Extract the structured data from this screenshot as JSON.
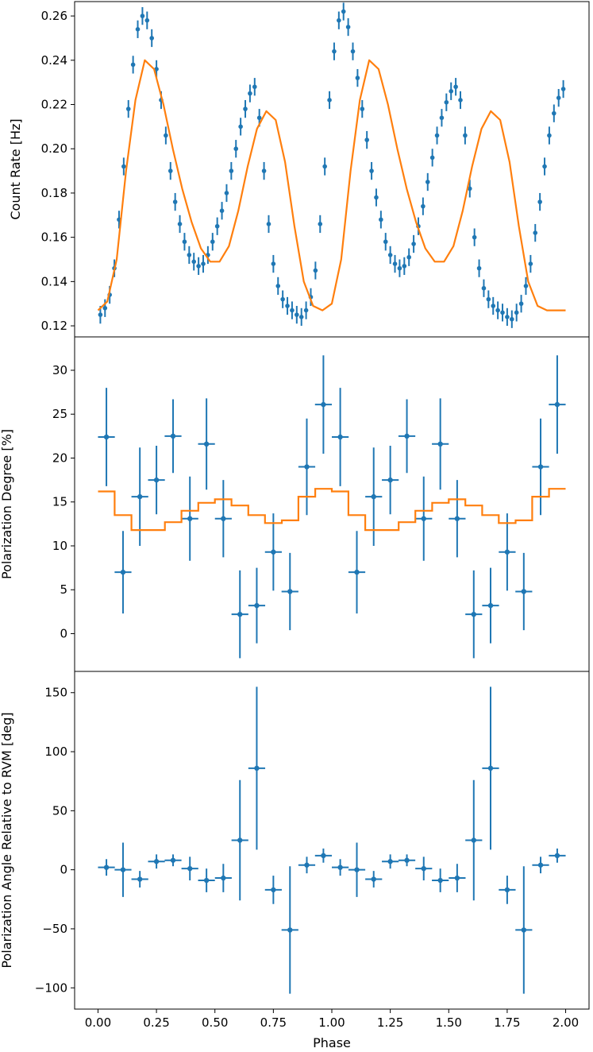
{
  "figure": {
    "xlabel": "Phase",
    "x_ticks": [
      "0.00",
      "0.25",
      "0.50",
      "0.75",
      "1.00",
      "1.25",
      "1.50",
      "1.75",
      "2.00"
    ],
    "colors": {
      "data": "#1f77b4",
      "model": "#ff7f0e",
      "axes": "#000000"
    }
  },
  "chart_data": [
    {
      "type": "scatter",
      "ylabel": "Count Rate [Hz]",
      "xlim": [
        -0.1,
        2.1
      ],
      "ylim": [
        0.115,
        0.2665
      ],
      "y_ticks": [
        "0.12",
        "0.14",
        "0.16",
        "0.18",
        "0.20",
        "0.22",
        "0.24",
        "0.26"
      ],
      "series": [
        {
          "kind": "points",
          "x": [
            0.01,
            0.03,
            0.05,
            0.07,
            0.09,
            0.11,
            0.13,
            0.15,
            0.17,
            0.19,
            0.21,
            0.23,
            0.25,
            0.27,
            0.29,
            0.31,
            0.33,
            0.35,
            0.37,
            0.39,
            0.41,
            0.43,
            0.45,
            0.47,
            0.49,
            0.51,
            0.53,
            0.55,
            0.57,
            0.59,
            0.61,
            0.63,
            0.65,
            0.67,
            0.69,
            0.71,
            0.73,
            0.75,
            0.77,
            0.79,
            0.81,
            0.83,
            0.85,
            0.87,
            0.89,
            0.91,
            0.93,
            0.95,
            0.97,
            0.99,
            1.01,
            1.03,
            1.05,
            1.07,
            1.09,
            1.11,
            1.13,
            1.15,
            1.17,
            1.19,
            1.21,
            1.23,
            1.25,
            1.27,
            1.29,
            1.31,
            1.33,
            1.35,
            1.37,
            1.39,
            1.41,
            1.43,
            1.45,
            1.47,
            1.49,
            1.51,
            1.53,
            1.55,
            1.57,
            1.59,
            1.61,
            1.63,
            1.65,
            1.67,
            1.69,
            1.71,
            1.73,
            1.75,
            1.77,
            1.79,
            1.81,
            1.83,
            1.85,
            1.87,
            1.89,
            1.91,
            1.93,
            1.95,
            1.97,
            1.99
          ],
          "y": [
            0.125,
            0.128,
            0.134,
            0.146,
            0.168,
            0.192,
            0.218,
            0.238,
            0.254,
            0.26,
            0.258,
            0.25,
            0.236,
            0.222,
            0.206,
            0.19,
            0.176,
            0.166,
            0.158,
            0.152,
            0.149,
            0.147,
            0.148,
            0.152,
            0.158,
            0.165,
            0.172,
            0.18,
            0.19,
            0.2,
            0.21,
            0.218,
            0.225,
            0.228,
            0.214,
            0.19,
            0.166,
            0.148,
            0.138,
            0.132,
            0.129,
            0.127,
            0.125,
            0.124,
            0.127,
            0.133,
            0.145,
            0.166,
            0.192,
            0.222,
            0.244,
            0.258,
            0.262,
            0.255,
            0.244,
            0.232,
            0.218,
            0.204,
            0.19,
            0.178,
            0.168,
            0.158,
            0.152,
            0.148,
            0.146,
            0.147,
            0.151,
            0.157,
            0.165,
            0.174,
            0.185,
            0.196,
            0.206,
            0.214,
            0.221,
            0.226,
            0.228,
            0.222,
            0.206,
            0.182,
            0.16,
            0.146,
            0.137,
            0.132,
            0.129,
            0.127,
            0.126,
            0.124,
            0.123,
            0.126,
            0.13,
            0.138,
            0.148,
            0.162,
            0.176,
            0.192,
            0.206,
            0.216,
            0.223,
            0.227
          ],
          "yerr": 0.004
        },
        {
          "kind": "line",
          "x": [
            0.0,
            0.04,
            0.08,
            0.12,
            0.16,
            0.2,
            0.24,
            0.28,
            0.32,
            0.36,
            0.4,
            0.44,
            0.48,
            0.52,
            0.56,
            0.6,
            0.64,
            0.68,
            0.72,
            0.76,
            0.8,
            0.84,
            0.88,
            0.92,
            0.96,
            1.0,
            1.04,
            1.08,
            1.12,
            1.16,
            1.2,
            1.24,
            1.28,
            1.32,
            1.36,
            1.4,
            1.44,
            1.48,
            1.52,
            1.56,
            1.6,
            1.64,
            1.68,
            1.72,
            1.76,
            1.8,
            1.84,
            1.88,
            1.92,
            1.96,
            2.0
          ],
          "y": [
            0.127,
            0.131,
            0.15,
            0.19,
            0.222,
            0.24,
            0.236,
            0.22,
            0.2,
            0.182,
            0.167,
            0.155,
            0.149,
            0.149,
            0.156,
            0.172,
            0.192,
            0.209,
            0.217,
            0.213,
            0.194,
            0.165,
            0.14,
            0.129,
            0.127,
            0.13,
            0.15,
            0.19,
            0.222,
            0.24,
            0.236,
            0.22,
            0.2,
            0.182,
            0.167,
            0.155,
            0.149,
            0.149,
            0.156,
            0.172,
            0.192,
            0.209,
            0.217,
            0.213,
            0.194,
            0.165,
            0.14,
            0.129,
            0.127,
            0.127,
            0.127
          ]
        }
      ]
    },
    {
      "type": "scatter",
      "ylabel": "Polarization Degree [%]",
      "xlim": [
        -0.1,
        2.1
      ],
      "ylim": [
        -4.3,
        33.8
      ],
      "y_ticks": [
        "0",
        "5",
        "10",
        "15",
        "20",
        "25",
        "30"
      ],
      "series": [
        {
          "kind": "points",
          "x": [
            0.036,
            0.107,
            0.179,
            0.25,
            0.321,
            0.393,
            0.464,
            0.536,
            0.607,
            0.679,
            0.75,
            0.821,
            0.893,
            0.964,
            1.036,
            1.107,
            1.179,
            1.25,
            1.321,
            1.393,
            1.464,
            1.536,
            1.607,
            1.679,
            1.75,
            1.821,
            1.893,
            1.964
          ],
          "y": [
            22.4,
            7.0,
            15.6,
            17.5,
            22.5,
            13.1,
            21.6,
            13.1,
            2.2,
            3.2,
            9.3,
            4.8,
            19.0,
            26.1,
            22.4,
            7.0,
            15.6,
            17.5,
            22.5,
            13.1,
            21.6,
            13.1,
            2.2,
            3.2,
            9.3,
            4.8,
            19.0,
            26.1
          ],
          "yerr": [
            5.6,
            4.7,
            5.6,
            3.9,
            4.2,
            4.8,
            5.2,
            4.4,
            5.0,
            4.3,
            4.4,
            4.4,
            5.5,
            5.6,
            5.6,
            4.7,
            5.6,
            3.9,
            4.2,
            4.8,
            5.2,
            4.4,
            5.0,
            4.3,
            4.4,
            4.4,
            5.5,
            5.6
          ],
          "xerr": 0.036
        },
        {
          "kind": "step",
          "edges": [
            0.0,
            0.071,
            0.143,
            0.214,
            0.286,
            0.357,
            0.429,
            0.5,
            0.571,
            0.643,
            0.714,
            0.786,
            0.857,
            0.929,
            1.0,
            1.071,
            1.143,
            1.214,
            1.286,
            1.357,
            1.429,
            1.5,
            1.571,
            1.643,
            1.714,
            1.786,
            1.857,
            1.929,
            2.0
          ],
          "values": [
            16.2,
            13.5,
            11.8,
            11.8,
            12.7,
            14.0,
            14.9,
            15.3,
            14.6,
            13.5,
            12.6,
            12.9,
            15.6,
            16.5,
            16.2,
            13.5,
            11.8,
            11.8,
            12.7,
            14.0,
            14.9,
            15.3,
            14.6,
            13.5,
            12.6,
            12.9,
            15.6,
            16.5
          ]
        }
      ]
    },
    {
      "type": "scatter",
      "ylabel": "Polarization Angle Relative to RVM [deg]",
      "xlim": [
        -0.1,
        2.1
      ],
      "ylim": [
        -118,
        168
      ],
      "y_ticks": [
        "−100",
        "−50",
        "0",
        "50",
        "100",
        "150"
      ],
      "series": [
        {
          "kind": "points",
          "x": [
            0.036,
            0.107,
            0.179,
            0.25,
            0.321,
            0.393,
            0.464,
            0.536,
            0.607,
            0.679,
            0.75,
            0.821,
            0.893,
            0.964,
            1.036,
            1.107,
            1.179,
            1.25,
            1.321,
            1.393,
            1.464,
            1.536,
            1.607,
            1.679,
            1.75,
            1.821,
            1.893,
            1.964
          ],
          "y": [
            2,
            0,
            -8,
            7,
            8,
            1,
            -9,
            -7,
            25,
            86,
            -17,
            -51,
            4,
            12,
            2,
            0,
            -8,
            7,
            8,
            1,
            -9,
            -7,
            25,
            86,
            -17,
            -51,
            4,
            12
          ],
          "yerr": [
            7,
            23,
            7,
            6,
            5,
            10,
            10,
            12,
            51,
            69,
            12,
            54,
            7,
            6,
            7,
            23,
            7,
            6,
            5,
            10,
            10,
            12,
            51,
            69,
            12,
            54,
            7,
            6
          ],
          "xerr": 0.036
        }
      ]
    }
  ]
}
